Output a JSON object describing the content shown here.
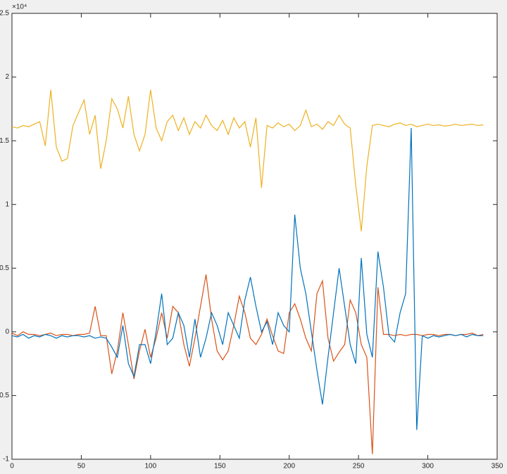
{
  "chart_data": {
    "type": "line",
    "y_exponent": "×10⁴",
    "x": [
      0,
      4,
      8,
      12,
      16,
      20,
      24,
      28,
      32,
      36,
      40,
      44,
      48,
      52,
      56,
      60,
      64,
      68,
      72,
      76,
      80,
      84,
      88,
      92,
      96,
      100,
      104,
      108,
      112,
      116,
      120,
      124,
      128,
      132,
      136,
      140,
      144,
      148,
      152,
      156,
      160,
      164,
      168,
      172,
      176,
      180,
      184,
      188,
      192,
      196,
      200,
      204,
      208,
      212,
      216,
      220,
      224,
      228,
      232,
      236,
      240,
      244,
      248,
      252,
      256,
      260,
      264,
      268,
      272,
      276,
      280,
      284,
      288,
      292,
      296,
      300,
      304,
      308,
      312,
      316,
      320,
      324,
      328,
      332,
      336,
      340
    ],
    "series": [
      {
        "color": "#0072BD",
        "values": [
          -300,
          -400,
          -200,
          -500,
          -300,
          -400,
          -200,
          -300,
          -500,
          -300,
          -400,
          -300,
          -300,
          -400,
          -300,
          -500,
          -400,
          -500,
          -1200,
          -2000,
          500,
          -2500,
          -3500,
          -1000,
          -1000,
          -2500,
          0,
          3000,
          -1000,
          -500,
          1500,
          500,
          -2000,
          1000,
          -2000,
          -500,
          1500,
          500,
          -1000,
          1500,
          500,
          -500,
          2500,
          4300,
          2000,
          0,
          800,
          -1000,
          1500,
          500,
          0,
          9200,
          5000,
          3000,
          0,
          -3000,
          -5700,
          -2000,
          1500,
          5000,
          2000,
          -1000,
          -2500,
          5800,
          -200,
          -2000,
          6300,
          3500,
          -300,
          -800,
          1500,
          3000,
          16000,
          -7700,
          -300,
          -500,
          -300,
          -400,
          -300,
          -200,
          -300,
          -200,
          -400,
          -200,
          -300,
          -300
        ]
      },
      {
        "color": "#D95319",
        "values": [
          -100,
          -300,
          0,
          -200,
          -200,
          -300,
          -200,
          -100,
          -300,
          -200,
          -200,
          -300,
          -200,
          -200,
          -100,
          2000,
          -300,
          -300,
          -3300,
          -1500,
          1500,
          -1000,
          -3700,
          -1500,
          200,
          -2000,
          -500,
          1500,
          -500,
          2000,
          1500,
          -1000,
          -2700,
          -500,
          2000,
          4500,
          1000,
          -1500,
          -2200,
          -1500,
          500,
          2800,
          1500,
          -500,
          -1000,
          -200,
          1000,
          -300,
          -1500,
          -1700,
          1500,
          2200,
          1000,
          -500,
          -1500,
          3000,
          4000,
          -500,
          -2300,
          -1600,
          -1000,
          2500,
          1500,
          -1000,
          -2000,
          -9600,
          3500,
          -200,
          -200,
          -300,
          -200,
          -300,
          -200,
          -200,
          -300,
          -200,
          -200,
          -300,
          -200,
          -200,
          -300,
          -200,
          -200,
          -100,
          -300,
          -200
        ]
      },
      {
        "color": "#EDB120",
        "values": [
          16100,
          16000,
          16200,
          16100,
          16300,
          16500,
          14600,
          19000,
          14500,
          13400,
          13600,
          16200,
          17200,
          18200,
          15500,
          17000,
          12800,
          15000,
          18300,
          17500,
          16000,
          18500,
          15500,
          14200,
          15500,
          19000,
          16000,
          15000,
          16500,
          17000,
          15800,
          16800,
          15500,
          16500,
          16000,
          17000,
          16200,
          15800,
          16600,
          15500,
          16800,
          16000,
          16500,
          14500,
          16800,
          11300,
          16200,
          16000,
          16400,
          16100,
          16300,
          15800,
          16200,
          17400,
          16100,
          16300,
          15900,
          16500,
          16200,
          17000,
          16300,
          16000,
          11500,
          7900,
          13000,
          16200,
          16300,
          16200,
          16100,
          16300,
          16400,
          16200,
          16300,
          16100,
          16200,
          16300,
          16200,
          16250,
          16150,
          16200,
          16300,
          16200,
          16250,
          16300,
          16200,
          16250
        ]
      }
    ],
    "xlim": [
      0,
      350
    ],
    "xticks": [
      0,
      50,
      100,
      150,
      200,
      250,
      300,
      350
    ],
    "ylim": [
      -10000,
      25000
    ],
    "yticks": [
      {
        "value": -10000,
        "label": "-1"
      },
      {
        "value": -5000,
        "label": "-0.5"
      },
      {
        "value": 0,
        "label": "0"
      },
      {
        "value": 5000,
        "label": "0.5"
      },
      {
        "value": 10000,
        "label": "1"
      },
      {
        "value": 15000,
        "label": "1.5"
      },
      {
        "value": 20000,
        "label": "2"
      },
      {
        "value": 25000,
        "label": "2.5"
      }
    ]
  }
}
